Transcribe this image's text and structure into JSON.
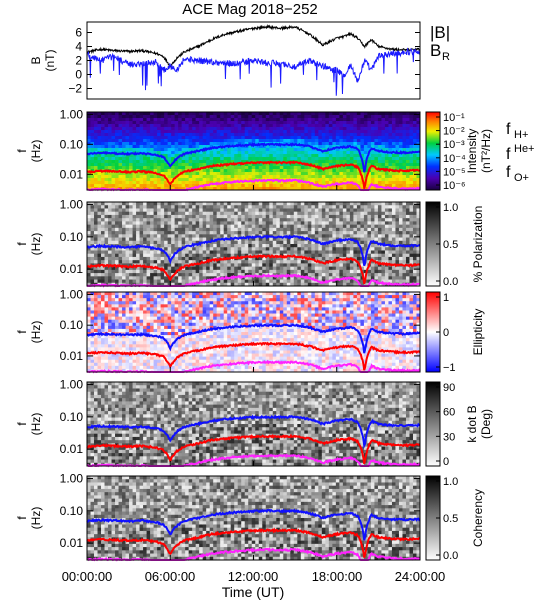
{
  "title": "ACE Mag 2018−252",
  "colors": {
    "B_total": "#000000",
    "B_R": "#1a1aff",
    "f_H": "#1010ff",
    "f_He": "#ff0000",
    "f_O": "#ff22ff",
    "gray_low": "#ffffff",
    "gray_high": "#000000"
  },
  "x_axis": {
    "label": "Time (UT)",
    "ticks": [
      "00:00:00",
      "06:00:00",
      "12:00:00",
      "18:00:00",
      "24:00:00"
    ],
    "range_hours": [
      0,
      24
    ]
  },
  "chart_data": [
    {
      "type": "line",
      "panel": "magnetic-field",
      "ylabel_top": "B",
      "ylabel_bottom": "(nT)",
      "ylim": [
        -3.5,
        7.5
      ],
      "yticks": [
        "6",
        "4",
        "2",
        "0",
        "−2"
      ],
      "ytick_values": [
        6,
        4,
        2,
        0,
        -2
      ],
      "legend": [
        {
          "text": "|B|",
          "color": "#000000"
        },
        {
          "text": "B",
          "sub": "R",
          "color": "#1a1aff"
        }
      ],
      "x_hours": [
        0,
        1,
        2,
        3,
        4,
        5,
        5.5,
        6,
        6.5,
        7,
        8,
        9,
        10,
        11,
        12,
        13,
        14,
        15,
        16,
        17,
        18,
        18.5,
        19,
        19.5,
        20,
        20.5,
        21,
        22,
        23,
        24
      ],
      "series": [
        {
          "name": "|B|",
          "values": [
            3.2,
            3.6,
            3.4,
            3.3,
            3.4,
            3.0,
            2.6,
            1.2,
            2.4,
            3.2,
            4.0,
            5.0,
            5.8,
            6.2,
            6.6,
            6.8,
            6.6,
            6.8,
            5.8,
            4.2,
            5.2,
            5.4,
            5.8,
            5.2,
            4.0,
            5.0,
            4.0,
            3.6,
            3.5,
            3.6
          ]
        },
        {
          "name": "B_R",
          "values": [
            2.8,
            2.0,
            2.6,
            1.4,
            1.6,
            1.8,
            0.6,
            1.2,
            0.8,
            2.2,
            2.0,
            1.8,
            1.6,
            1.6,
            2.0,
            1.6,
            1.6,
            1.0,
            2.0,
            1.2,
            0.6,
            -0.2,
            1.4,
            -1.0,
            2.0,
            0.6,
            2.6,
            3.0,
            3.2,
            3.4
          ]
        }
      ]
    },
    {
      "type": "heatmap",
      "panel": "intensity",
      "ylabel_top": "f",
      "ylabel_bottom": "(Hz)",
      "yticks": [
        "1.00",
        "0.10",
        "0.01"
      ],
      "ylim": [
        0.003,
        1.2
      ],
      "yscale": "log",
      "colorbar": {
        "label_line1": "Intensity",
        "label_line2": "(nT²/Hz)",
        "ticks": [
          "10⁻¹",
          "10⁻²",
          "10⁻³",
          "10⁻⁴",
          "10⁻⁵",
          "10⁻⁶"
        ],
        "scale": "rainbow"
      },
      "legend": [
        {
          "text": "f",
          "sub": "H+",
          "color": "#1010ff"
        },
        {
          "text": "f",
          "sup": "He+",
          "color": "#ff0000"
        },
        {
          "text": "f",
          "sub": "O+",
          "color": "#ff22ff"
        }
      ]
    },
    {
      "type": "heatmap",
      "panel": "polarization",
      "ylabel_top": "f",
      "ylabel_bottom": "(Hz)",
      "yticks": [
        "1.00",
        "0.10",
        "0.01"
      ],
      "colorbar": {
        "label_line1": "% Polarization",
        "label_line2": "",
        "ticks": [
          "1.0",
          "0.5",
          "0.0"
        ],
        "scale": "gray"
      }
    },
    {
      "type": "heatmap",
      "panel": "ellipticity",
      "ylabel_top": "f",
      "ylabel_bottom": "(Hz)",
      "yticks": [
        "1.00",
        "0.10",
        "0.01"
      ],
      "colorbar": {
        "label_line1": "Ellipticity",
        "label_line2": "",
        "ticks": [
          "1",
          "0",
          "−1"
        ],
        "scale": "bwr"
      }
    },
    {
      "type": "heatmap",
      "panel": "k-dot-b",
      "ylabel_top": "f",
      "ylabel_bottom": "(Hz)",
      "yticks": [
        "1.00",
        "0.10",
        "0.01"
      ],
      "colorbar": {
        "label_line1": "k dot B",
        "label_line2": "(Deg)",
        "ticks": [
          "90",
          "60",
          "30",
          "0"
        ],
        "scale": "gray"
      }
    },
    {
      "type": "heatmap",
      "panel": "coherency",
      "ylabel_top": "f",
      "ylabel_bottom": "(Hz)",
      "yticks": [
        "1.00",
        "0.10",
        "0.01"
      ],
      "colorbar": {
        "label_line1": "Coherency",
        "label_line2": "",
        "ticks": [
          "1.0",
          "0.5",
          "0.0"
        ],
        "scale": "gray"
      }
    }
  ],
  "gyrofrequencies": {
    "x_hours": [
      0,
      1,
      2,
      3,
      4,
      5,
      5.5,
      6,
      6.5,
      7,
      8,
      9,
      10,
      11,
      12,
      13,
      14,
      15,
      16,
      17,
      18,
      18.5,
      19,
      19.5,
      20,
      20.5,
      21,
      22,
      23,
      24
    ],
    "f_H_hz": [
      0.048,
      0.052,
      0.05,
      0.048,
      0.05,
      0.044,
      0.038,
      0.018,
      0.035,
      0.048,
      0.06,
      0.075,
      0.085,
      0.092,
      0.098,
      0.1,
      0.098,
      0.1,
      0.085,
      0.06,
      0.077,
      0.08,
      0.085,
      0.07,
      0.01,
      0.075,
      0.06,
      0.054,
      0.053,
      0.055
    ],
    "f_He_hz": [
      0.012,
      0.013,
      0.0125,
      0.012,
      0.0125,
      0.011,
      0.0095,
      0.0045,
      0.0088,
      0.012,
      0.015,
      0.019,
      0.021,
      0.023,
      0.0245,
      0.025,
      0.0245,
      0.025,
      0.021,
      0.015,
      0.019,
      0.02,
      0.021,
      0.0175,
      0.003,
      0.019,
      0.015,
      0.0135,
      0.013,
      0.0138
    ],
    "f_O_hz": [
      0.003,
      0.0032,
      0.0031,
      0.003,
      0.0031,
      0.0028,
      0.0024,
      0.0011,
      0.0022,
      0.003,
      0.0038,
      0.0047,
      0.0053,
      0.0058,
      0.0061,
      0.0063,
      0.0061,
      0.0063,
      0.0053,
      0.0038,
      0.0048,
      0.005,
      0.0053,
      0.0044,
      0.0008,
      0.0047,
      0.0038,
      0.0034,
      0.0033,
      0.0034
    ]
  }
}
